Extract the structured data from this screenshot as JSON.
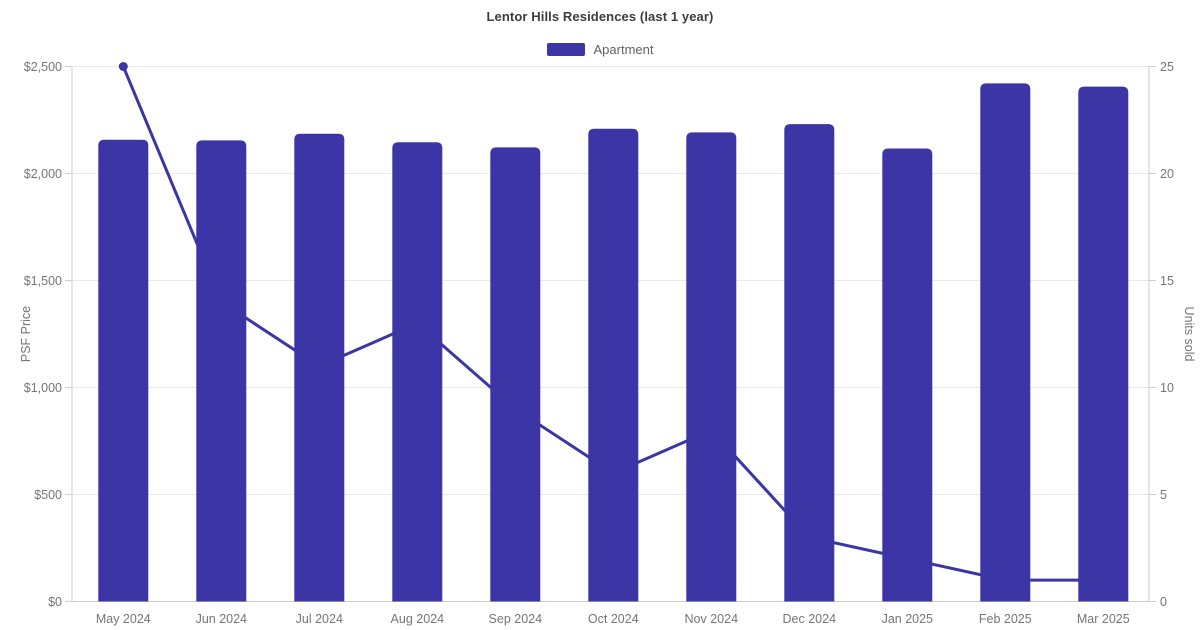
{
  "title": "Lentor Hills Residences (last 1 year)",
  "legend": {
    "items": [
      {
        "label": "Apartment"
      }
    ]
  },
  "colors": {
    "accent": "#3b35a6",
    "grid": "#e9e9e9",
    "axis_line": "#cccccc",
    "tick_text": "#757575",
    "title_text": "#3d3d3d",
    "legend_text": "#616161",
    "background": "#ffffff"
  },
  "chart_data": {
    "type": "bar+line",
    "title": "Lentor Hills Residences (last 1 year)",
    "categories": [
      "May 2024",
      "Jun 2024",
      "Jul 2024",
      "Aug 2024",
      "Sep 2024",
      "Oct 2024",
      "Nov 2024",
      "Dec 2024",
      "Jan 2025",
      "Feb 2025",
      "Mar 2025"
    ],
    "series": [
      {
        "name": "Apartment",
        "type": "bar",
        "axis": "left",
        "values": [
          2158,
          2155,
          2186,
          2146,
          2122,
          2209,
          2192,
          2231,
          2117,
          2421,
          2406
        ]
      },
      {
        "name": "Units sold",
        "type": "line",
        "axis": "right",
        "values": [
          25,
          14,
          11,
          13,
          9,
          6,
          8,
          3,
          2,
          1,
          1
        ],
        "start_marker": true
      }
    ],
    "left_axis": {
      "label": "PSF Price",
      "range": [
        0,
        2500
      ],
      "ticks": [
        "$0",
        "$500",
        "$1,000",
        "$1,500",
        "$2,000",
        "$2,500"
      ]
    },
    "right_axis": {
      "label": "Units sold",
      "range": [
        0,
        25
      ],
      "ticks": [
        "0",
        "5",
        "10",
        "15",
        "20",
        "25"
      ]
    },
    "grid": true,
    "legend_position": "top-center"
  }
}
